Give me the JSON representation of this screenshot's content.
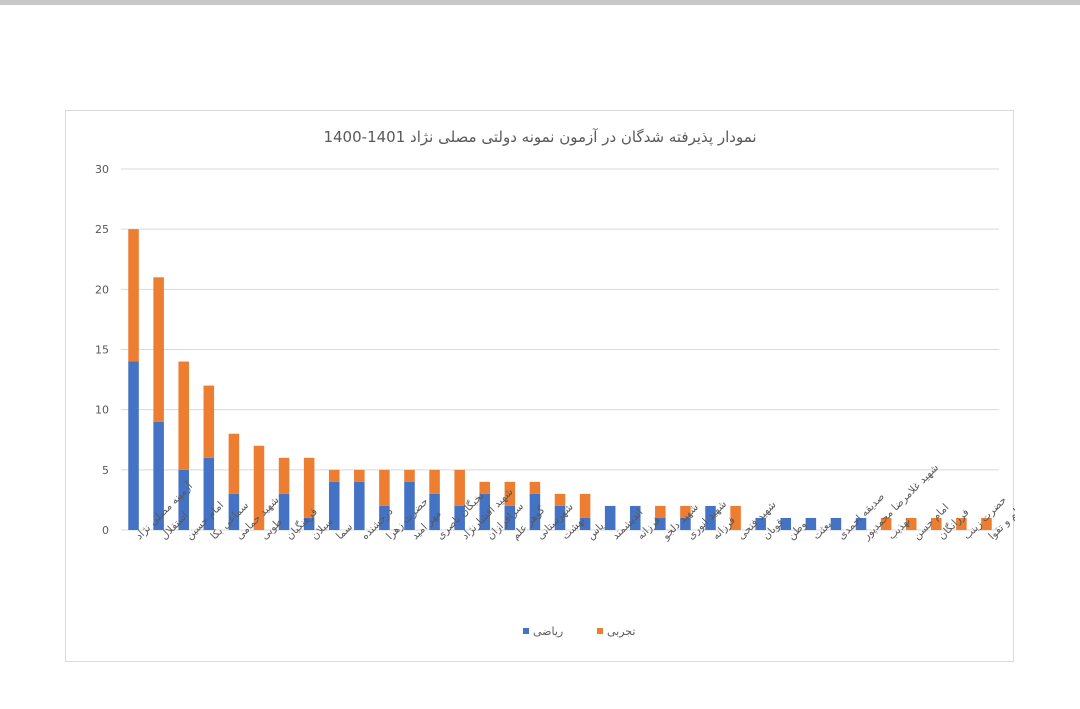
{
  "chart_data": {
    "type": "bar",
    "stacked": true,
    "title": "نمودار پذیرفته شدگان در آزمون نمونه دولتی مصلی نژاد 1401-1400",
    "xlabel": "",
    "ylabel": "",
    "ylim": [
      0,
      30
    ],
    "yticks": [
      "0",
      "5",
      "10",
      "15",
      "20",
      "25",
      "30"
    ],
    "grid": true,
    "legend_position": "bottom",
    "categories": [
      "آرمینه مصلی نژاد",
      "استقلال",
      "امام حسین",
      "سماعی بکا",
      "شهید حمامی",
      "طوبی",
      "فرهنگیان",
      "سبلان",
      "سما",
      "درخشنده",
      "حضرت زهرا",
      "مهر امید",
      "نخبگان ناصری",
      "شهید افشارنژاد",
      "سرافرازان",
      "گوهر علم",
      "شهرستانی",
      "بهشت",
      "پاس",
      "اندیشمند",
      "فرزانه",
      "شهید دلجو",
      "شهید انوری",
      "فرزانه",
      "شهید فتحی",
      "قوبان",
      "وطن",
      "بعثت",
      "صدیقه احمدی",
      "شهید غلامرضا محمدپور",
      "تهذیب",
      "امام حسن",
      "فرزانگان",
      "حضرت زینب",
      "علم و تقوا"
    ],
    "series": [
      {
        "name": "ریاضی",
        "color": "#4472C4",
        "values": [
          14,
          9,
          5,
          6,
          3,
          0,
          3,
          1,
          4,
          4,
          2,
          4,
          3,
          2,
          3,
          2,
          3,
          2,
          1,
          2,
          2,
          1,
          1,
          2,
          0,
          1,
          1,
          1,
          1,
          1,
          0,
          0,
          0,
          0,
          0
        ]
      },
      {
        "name": "تجربی",
        "color": "#ED7D31",
        "values": [
          11,
          12,
          9,
          6,
          5,
          7,
          3,
          5,
          1,
          1,
          3,
          1,
          2,
          3,
          1,
          2,
          1,
          1,
          2,
          0,
          0,
          1,
          1,
          0,
          2,
          0,
          0,
          0,
          0,
          0,
          1,
          1,
          1,
          1,
          1
        ]
      }
    ]
  },
  "colors": {
    "grid": "#d9d9d9",
    "text": "#595959",
    "frame": "#d9d9d9"
  }
}
